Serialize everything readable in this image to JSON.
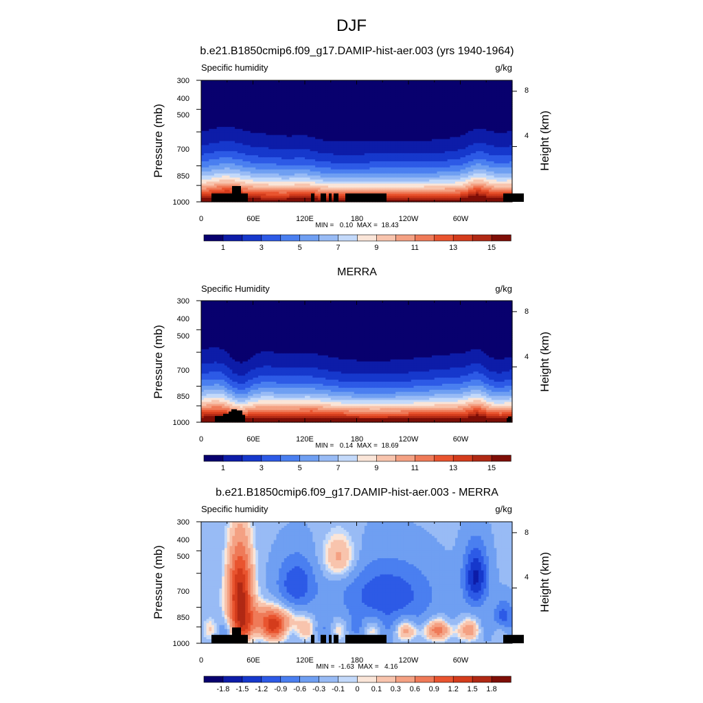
{
  "figure": {
    "title": "DJF",
    "panel_titles": [
      "b.e21.B1850cmip6.f09_g17.DAMIP-hist-aer.003 (yrs 1940-1964)",
      "MERRA",
      "b.e21.B1850cmip6.f09_g17.DAMIP-hist-aer.003 - MERRA"
    ]
  },
  "chart_data": [
    {
      "type": "heatmap",
      "title": "b.e21.B1850cmip6.f09_g17.DAMIP-hist-aer.003 (yrs 1940-1964)",
      "left_string": "Specific humidity",
      "right_string": "g/kg",
      "ylabel": "Pressure (mb)",
      "ylabel_right": "Height (km)",
      "x_ticks": [
        "0",
        "60E",
        "120E",
        "180",
        "120W",
        "60W"
      ],
      "x_tick_values": [
        0,
        60,
        120,
        180,
        240,
        300
      ],
      "xlim": [
        0,
        360
      ],
      "y_ticks": [
        "300",
        "400",
        "500",
        "700",
        "850",
        "1000"
      ],
      "y_tick_values": [
        300,
        400,
        500,
        700,
        850,
        1000
      ],
      "ylim": [
        1000,
        300
      ],
      "y_scale": "log",
      "height_ticks": [
        "8",
        "4"
      ],
      "height_tick_values_km": [
        8,
        4
      ],
      "stats": "MIN =   0.10  MAX =  18.43",
      "colorbar_labels": [
        "1",
        "3",
        "5",
        "7",
        "9",
        "11",
        "13",
        "15"
      ],
      "levels": [
        0,
        1,
        2,
        3,
        4,
        5,
        6,
        7,
        8,
        9,
        10,
        11,
        12,
        13,
        14,
        15,
        16
      ],
      "colors": [
        "#08006e",
        "#0d1ca8",
        "#1638cc",
        "#2d5ae6",
        "#4a7ff0",
        "#6f9ff2",
        "#98bbf5",
        "#c3d9fa",
        "#fae5d8",
        "#f8c4ad",
        "#f4a183",
        "#ef7a58",
        "#e9542f",
        "#d43c1c",
        "#b02914",
        "#7e0e07"
      ],
      "field": "model"
    },
    {
      "type": "heatmap",
      "title": "MERRA",
      "left_string": "Specific Humidity",
      "right_string": "g/kg",
      "ylabel": "Pressure (mb)",
      "ylabel_right": "Height (km)",
      "x_ticks": [
        "0",
        "60E",
        "120E",
        "180",
        "120W",
        "60W"
      ],
      "x_tick_values": [
        0,
        60,
        120,
        180,
        240,
        300
      ],
      "xlim": [
        0,
        360
      ],
      "y_ticks": [
        "300",
        "400",
        "500",
        "700",
        "850",
        "1000"
      ],
      "y_tick_values": [
        300,
        400,
        500,
        700,
        850,
        1000
      ],
      "ylim": [
        1000,
        300
      ],
      "y_scale": "log",
      "height_ticks": [
        "8",
        "4"
      ],
      "height_tick_values_km": [
        8,
        4
      ],
      "stats": "MIN =   0.14  MAX =  18.69",
      "colorbar_labels": [
        "1",
        "3",
        "5",
        "7",
        "9",
        "11",
        "13",
        "15"
      ],
      "levels": [
        0,
        1,
        2,
        3,
        4,
        5,
        6,
        7,
        8,
        9,
        10,
        11,
        12,
        13,
        14,
        15,
        16
      ],
      "colors": [
        "#08006e",
        "#0d1ca8",
        "#1638cc",
        "#2d5ae6",
        "#4a7ff0",
        "#6f9ff2",
        "#98bbf5",
        "#c3d9fa",
        "#fae5d8",
        "#f8c4ad",
        "#f4a183",
        "#ef7a58",
        "#e9542f",
        "#d43c1c",
        "#b02914",
        "#7e0e07"
      ],
      "field": "obs"
    },
    {
      "type": "heatmap",
      "title": "b.e21.B1850cmip6.f09_g17.DAMIP-hist-aer.003 - MERRA",
      "left_string": "Specific humidity",
      "right_string": "g/kg",
      "ylabel": "Pressure (mb)",
      "ylabel_right": "Height (km)",
      "x_ticks": [
        "0",
        "60E",
        "120E",
        "180",
        "120W",
        "60W"
      ],
      "x_tick_values": [
        0,
        60,
        120,
        180,
        240,
        300
      ],
      "xlim": [
        0,
        360
      ],
      "y_ticks": [
        "300",
        "400",
        "500",
        "700",
        "850",
        "1000"
      ],
      "y_tick_values": [
        300,
        400,
        500,
        700,
        850,
        1000
      ],
      "ylim": [
        1000,
        300
      ],
      "y_scale": "log",
      "height_ticks": [
        "8",
        "4"
      ],
      "height_tick_values_km": [
        8,
        4
      ],
      "stats": "MIN =  -1.63  MAX =   4.16",
      "colorbar_labels": [
        "-1.8",
        "-1.5",
        "-1.2",
        "-0.9",
        "-0.6",
        "-0.3",
        "-0.1",
        "0",
        "0.1",
        "0.3",
        "0.6",
        "0.9",
        "1.2",
        "1.5",
        "1.8"
      ],
      "levels": [
        -2.1,
        -1.8,
        -1.5,
        -1.2,
        -0.9,
        -0.6,
        -0.3,
        -0.1,
        0,
        0.1,
        0.3,
        0.6,
        0.9,
        1.2,
        1.5,
        1.8,
        2.1
      ],
      "colors": [
        "#08006e",
        "#0d1ca8",
        "#1638cc",
        "#2d5ae6",
        "#4a7ff0",
        "#6f9ff2",
        "#98bbf5",
        "#c3d9fa",
        "#fae5d8",
        "#f8c4ad",
        "#f4a183",
        "#ef7a58",
        "#e9542f",
        "#d43c1c",
        "#b02914",
        "#7e0e07"
      ],
      "field": "diff"
    }
  ]
}
